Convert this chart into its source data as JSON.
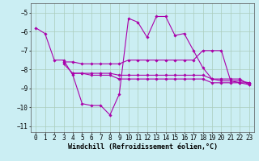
{
  "background_color": "#cbeef3",
  "grid_color": "#aaccbb",
  "line_color": "#aa00aa",
  "marker": "D",
  "markersize": 1.8,
  "linewidth": 0.8,
  "xlabel": "Windchill (Refroidissement éolien,°C)",
  "xlabel_fontsize": 6.0,
  "tick_fontsize": 5.5,
  "xlim": [
    -0.5,
    23.5
  ],
  "ylim": [
    -11.3,
    -4.5
  ],
  "yticks": [
    -11,
    -10,
    -9,
    -8,
    -7,
    -6,
    -5
  ],
  "xticks": [
    0,
    1,
    2,
    3,
    4,
    5,
    6,
    7,
    8,
    9,
    10,
    11,
    12,
    13,
    14,
    15,
    16,
    17,
    18,
    19,
    20,
    21,
    22,
    23
  ],
  "series": [
    {
      "x": [
        0,
        1,
        2,
        3,
        4,
        5,
        6,
        7,
        8,
        9,
        10,
        11,
        12,
        13,
        14,
        15,
        16,
        17,
        18,
        19,
        20,
        21,
        22,
        23
      ],
      "y": [
        -5.8,
        -6.1,
        -7.5,
        -7.5,
        -8.3,
        -9.8,
        -9.9,
        -9.9,
        -10.4,
        -9.3,
        -5.3,
        -5.5,
        -6.3,
        -5.2,
        -5.2,
        -6.2,
        -6.1,
        -7.0,
        -7.9,
        -8.5,
        -8.6,
        -8.6,
        -8.7,
        -8.7
      ]
    },
    {
      "x": [
        3,
        4,
        5,
        6,
        7,
        8,
        9,
        10,
        11,
        12,
        13,
        14,
        15,
        16,
        17,
        18,
        19,
        20,
        21,
        22,
        23
      ],
      "y": [
        -7.6,
        -7.6,
        -7.7,
        -7.7,
        -7.7,
        -7.7,
        -7.7,
        -7.5,
        -7.5,
        -7.5,
        -7.5,
        -7.5,
        -7.5,
        -7.5,
        -7.5,
        -7.0,
        -7.0,
        -7.0,
        -8.6,
        -8.6,
        -8.7
      ]
    },
    {
      "x": [
        3,
        4,
        5,
        6,
        7,
        8,
        9,
        10,
        11,
        12,
        13,
        14,
        15,
        16,
        17,
        18,
        19,
        20,
        21,
        22,
        23
      ],
      "y": [
        -7.7,
        -8.2,
        -8.2,
        -8.2,
        -8.2,
        -8.2,
        -8.3,
        -8.3,
        -8.3,
        -8.3,
        -8.3,
        -8.3,
        -8.3,
        -8.3,
        -8.3,
        -8.3,
        -8.5,
        -8.5,
        -8.5,
        -8.5,
        -8.8
      ]
    },
    {
      "x": [
        4,
        5,
        6,
        7,
        8,
        9,
        10,
        11,
        12,
        13,
        14,
        15,
        16,
        17,
        18,
        19,
        20,
        21,
        22,
        23
      ],
      "y": [
        -8.2,
        -8.2,
        -8.3,
        -8.3,
        -8.3,
        -8.5,
        -8.5,
        -8.5,
        -8.5,
        -8.5,
        -8.5,
        -8.5,
        -8.5,
        -8.5,
        -8.5,
        -8.7,
        -8.7,
        -8.7,
        -8.7,
        -8.8
      ]
    }
  ]
}
